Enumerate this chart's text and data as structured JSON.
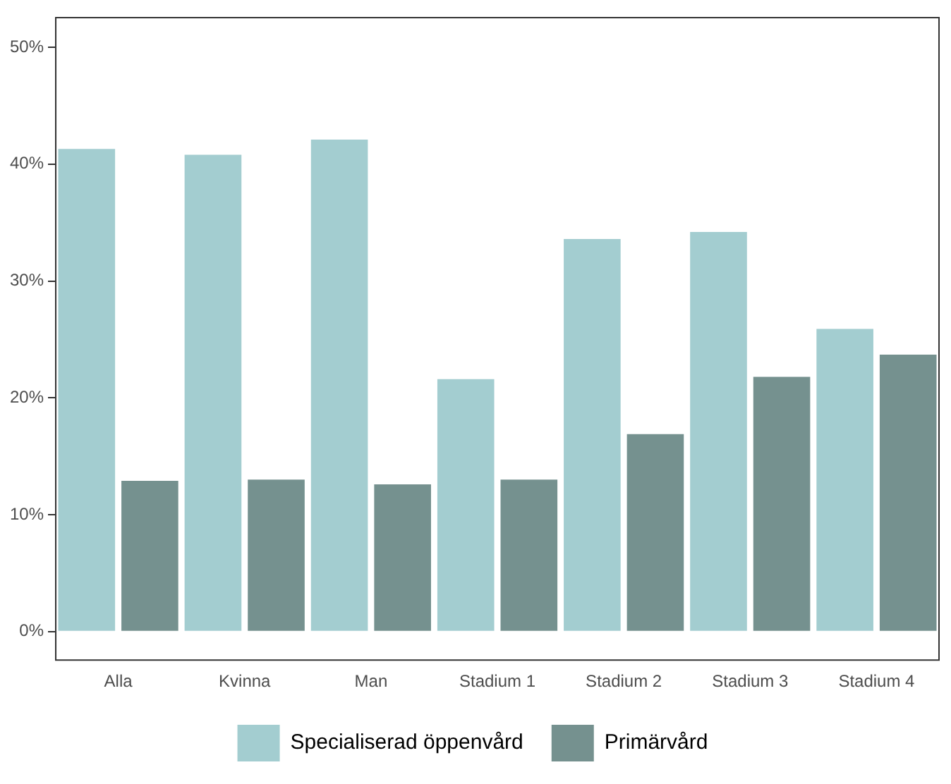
{
  "chart_data": {
    "type": "bar",
    "categories": [
      "Alla",
      "Kvinna",
      "Man",
      "Stadium 1",
      "Stadium 2",
      "Stadium 3",
      "Stadium 4"
    ],
    "series": [
      {
        "name": "Specialiserad öppenvård",
        "color": "#a3cdd0",
        "values": [
          41.3,
          40.8,
          42.1,
          21.6,
          33.6,
          34.2,
          25.9
        ]
      },
      {
        "name": "Primärvård",
        "color": "#75918f",
        "values": [
          12.9,
          13.0,
          12.6,
          13.0,
          16.9,
          21.8,
          23.7
        ]
      }
    ],
    "ylim": [
      -2.5,
      52.6
    ],
    "yticks": [
      {
        "value": 0,
        "label": "0%"
      },
      {
        "value": 10,
        "label": "10%"
      },
      {
        "value": 20,
        "label": "20%"
      },
      {
        "value": 30,
        "label": "30%"
      },
      {
        "value": 40,
        "label": "40%"
      },
      {
        "value": 50,
        "label": "50%"
      }
    ],
    "grid": false,
    "legend": "bottom"
  }
}
